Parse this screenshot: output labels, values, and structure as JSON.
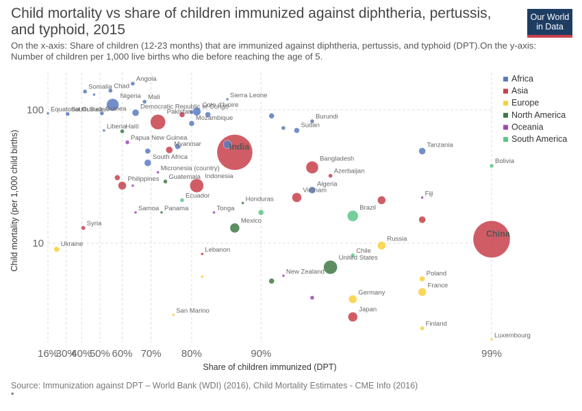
{
  "header": {
    "title": "Child mortality vs share of children immunized against diphtheria, pertussis, and typhoid, 2015",
    "subtitle": "On the x-axis: Share of children (12-23 months) that are immunized against diphtheria, pertussis, and typhoid (DPT).On the y-axis: Number of children per 1,000 live births who die before reaching the age of 5.",
    "logo_line1": "Our World",
    "logo_line2": "in Data"
  },
  "footer": {
    "source": "Source: Immunization against DPT – World Bank (WDI) (2016), Child Mortality Estimates - CME Info (2016)",
    "note": "•"
  },
  "colors": {
    "Africa": "#5b7bc0",
    "Asia": "#c8414b",
    "Europe": "#f9d03b",
    "North America": "#3f7a45",
    "Oceania": "#a046b8",
    "South America": "#5fc58a"
  },
  "chart_data": {
    "type": "scatter",
    "xlabel": "Share of children immunized (DPT)",
    "ylabel": "Child mortality (per 1,000 child births)",
    "x_scale": "log of (100 - x)",
    "y_scale": "log",
    "x_ticks": [
      "16%",
      "30%",
      "40%",
      "50%",
      "60%",
      "70%",
      "80%",
      "90%",
      "99%"
    ],
    "y_ticks": [
      "100",
      "10"
    ],
    "ylim": [
      1.8,
      190
    ],
    "legend_position": "right",
    "legend": [
      "Africa",
      "Asia",
      "Europe",
      "North America",
      "Oceania",
      "South America"
    ],
    "points": [
      {
        "label": "Equatorial Guinea",
        "region": "Africa",
        "x": 16,
        "y": 94,
        "size": 2
      },
      {
        "label": "South Sudan",
        "region": "Africa",
        "x": 31,
        "y": 93,
        "size": 3
      },
      {
        "label": "Somalia",
        "region": "Africa",
        "x": 42,
        "y": 137,
        "size": 3
      },
      {
        "label": "",
        "region": "Africa",
        "x": 47,
        "y": 130,
        "size": 2
      },
      {
        "label": "Chad",
        "region": "Africa",
        "x": 55,
        "y": 139,
        "size": 3
      },
      {
        "label": "Nigeria",
        "region": "Africa",
        "x": 56,
        "y": 109,
        "size": 9
      },
      {
        "label": "Guinea",
        "region": "Africa",
        "x": 51,
        "y": 94,
        "size": 3
      },
      {
        "label": "Angola",
        "region": "Africa",
        "x": 64,
        "y": 157,
        "size": 3
      },
      {
        "label": "Mali",
        "region": "Africa",
        "x": 68,
        "y": 115,
        "size": 3
      },
      {
        "label": "Democratic Republic of Congo",
        "region": "Africa",
        "x": 65,
        "y": 95,
        "size": 5
      },
      {
        "label": "Liberia",
        "region": "Africa",
        "x": 52,
        "y": 70,
        "size": 2
      },
      {
        "label": "Haiti",
        "region": "North America",
        "x": 60,
        "y": 69,
        "size": 3
      },
      {
        "label": "Papua New Guinea",
        "region": "Oceania",
        "x": 62,
        "y": 57,
        "size": 3
      },
      {
        "label": "Pakistan",
        "region": "Asia",
        "x": 72,
        "y": 81,
        "size": 11
      },
      {
        "label": "",
        "region": "Asia",
        "x": 78,
        "y": 92,
        "size": 4
      },
      {
        "label": "",
        "region": "Africa",
        "x": 80,
        "y": 96,
        "size": 3
      },
      {
        "label": "Cote d'Ivoire",
        "region": "Africa",
        "x": 81,
        "y": 97,
        "size": 6
      },
      {
        "label": "Mozambique",
        "region": "Africa",
        "x": 80,
        "y": 79,
        "size": 4
      },
      {
        "label": "",
        "region": "Africa",
        "x": 83,
        "y": 92,
        "size": 4
      },
      {
        "label": "Sierra Leone",
        "region": "Africa",
        "x": 86,
        "y": 120,
        "size": 2
      },
      {
        "label": "Burundi",
        "region": "Africa",
        "x": 94,
        "y": 82,
        "size": 3
      },
      {
        "label": "Sudan",
        "region": "Africa",
        "x": 93,
        "y": 70,
        "size": 4
      },
      {
        "label": "",
        "region": "Africa",
        "x": 91,
        "y": 90,
        "size": 4
      },
      {
        "label": "",
        "region": "Africa",
        "x": 92,
        "y": 73,
        "size": 3
      },
      {
        "label": "India",
        "region": "Asia",
        "x": 87,
        "y": 48,
        "size": 26
      },
      {
        "label": "",
        "region": "Africa",
        "x": 86,
        "y": 55,
        "size": 6
      },
      {
        "label": "Myanmar",
        "region": "Asia",
        "x": 75,
        "y": 50,
        "size": 5
      },
      {
        "label": "",
        "region": "Africa",
        "x": 77,
        "y": 53,
        "size": 4
      },
      {
        "label": "South Africa",
        "region": "Africa",
        "x": 69,
        "y": 40,
        "size": 5
      },
      {
        "label": "",
        "region": "Africa",
        "x": 69,
        "y": 49,
        "size": 4
      },
      {
        "label": "Micronesia (country)",
        "region": "Oceania",
        "x": 72,
        "y": 34,
        "size": 2
      },
      {
        "label": "Bangladesh",
        "region": "Asia",
        "x": 94,
        "y": 37,
        "size": 9
      },
      {
        "label": "Tanzania",
        "region": "Africa",
        "x": 98,
        "y": 49,
        "size": 5
      },
      {
        "label": "Bolivia",
        "region": "South America",
        "x": 99,
        "y": 38,
        "size": 3
      },
      {
        "label": "Azerbaijan",
        "region": "Asia",
        "x": 95,
        "y": 32,
        "size": 3
      },
      {
        "label": "Philippines",
        "region": "Asia",
        "x": 60,
        "y": 27,
        "size": 6
      },
      {
        "label": "",
        "region": "Asia",
        "x": 58,
        "y": 31,
        "size": 4
      },
      {
        "label": "",
        "region": "Oceania",
        "x": 64,
        "y": 27,
        "size": 2
      },
      {
        "label": "Guatemala",
        "region": "North America",
        "x": 74,
        "y": 29,
        "size": 3
      },
      {
        "label": "Indonesia",
        "region": "Asia",
        "x": 81,
        "y": 27,
        "size": 10
      },
      {
        "label": "Algeria",
        "region": "Africa",
        "x": 94,
        "y": 25,
        "size": 5
      },
      {
        "label": "Vietnam",
        "region": "Asia",
        "x": 93,
        "y": 22,
        "size": 7
      },
      {
        "label": "Fiji",
        "region": "Oceania",
        "x": 98,
        "y": 22,
        "size": 2
      },
      {
        "label": "",
        "region": "Asia",
        "x": 97,
        "y": 21,
        "size": 6
      },
      {
        "label": "Ecuador",
        "region": "South America",
        "x": 78,
        "y": 21,
        "size": 3
      },
      {
        "label": "Honduras",
        "region": "North America",
        "x": 88,
        "y": 20,
        "size": 2
      },
      {
        "label": "Samoa",
        "region": "Oceania",
        "x": 65,
        "y": 17,
        "size": 2
      },
      {
        "label": "Panama",
        "region": "North America",
        "x": 73,
        "y": 17,
        "size": 2
      },
      {
        "label": "Tonga",
        "region": "Oceania",
        "x": 84,
        "y": 17,
        "size": 2
      },
      {
        "label": "Brazil",
        "region": "South America",
        "x": 96,
        "y": 16,
        "size": 8
      },
      {
        "label": "",
        "region": "South America",
        "x": 90,
        "y": 17,
        "size": 4
      },
      {
        "label": "Mexico",
        "region": "North America",
        "x": 87,
        "y": 13,
        "size": 7
      },
      {
        "label": "China",
        "region": "Asia",
        "x": 99,
        "y": 10.7,
        "size": 27
      },
      {
        "label": "",
        "region": "Asia",
        "x": 98,
        "y": 15,
        "size": 5
      },
      {
        "label": "Russia",
        "region": "Europe",
        "x": 97,
        "y": 9.6,
        "size": 6
      },
      {
        "label": "Syria",
        "region": "Asia",
        "x": 41,
        "y": 13,
        "size": 3
      },
      {
        "label": "Ukraine",
        "region": "Europe",
        "x": 23,
        "y": 9,
        "size": 4
      },
      {
        "label": "Lebanon",
        "region": "Asia",
        "x": 82,
        "y": 8.3,
        "size": 2
      },
      {
        "label": "Chile",
        "region": "South America",
        "x": 96,
        "y": 8.1,
        "size": 3
      },
      {
        "label": "United States",
        "region": "North America",
        "x": 95,
        "y": 6.6,
        "size": 10
      },
      {
        "label": "New Zealand",
        "region": "Oceania",
        "x": 92,
        "y": 5.7,
        "size": 2
      },
      {
        "label": "",
        "region": "Europe",
        "x": 82,
        "y": 5.6,
        "size": 2
      },
      {
        "label": "Poland",
        "region": "Europe",
        "x": 98,
        "y": 5.4,
        "size": 4
      },
      {
        "label": "",
        "region": "North America",
        "x": 91,
        "y": 5.2,
        "size": 4
      },
      {
        "label": "France",
        "region": "Europe",
        "x": 98,
        "y": 4.3,
        "size": 6
      },
      {
        "label": "Germany",
        "region": "Europe",
        "x": 96,
        "y": 3.8,
        "size": 6
      },
      {
        "label": "",
        "region": "Oceania",
        "x": 94,
        "y": 3.9,
        "size": 3
      },
      {
        "label": "San Marino",
        "region": "Europe",
        "x": 76,
        "y": 2.9,
        "size": 2
      },
      {
        "label": "Japan",
        "region": "Asia",
        "x": 96,
        "y": 2.8,
        "size": 7
      },
      {
        "label": "Finland",
        "region": "Europe",
        "x": 98,
        "y": 2.3,
        "size": 3
      },
      {
        "label": "Luxembourg",
        "region": "Europe",
        "x": 99,
        "y": 1.9,
        "size": 2
      }
    ]
  }
}
